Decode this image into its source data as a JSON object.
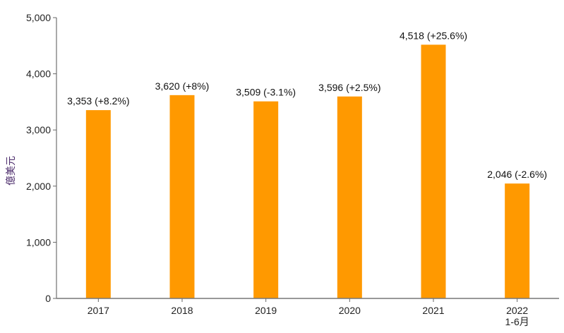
{
  "chart_data": {
    "type": "bar",
    "categories": [
      "2017",
      "2018",
      "2019",
      "2020",
      "2021",
      "2022\n1-6月"
    ],
    "values": [
      3353,
      3620,
      3509,
      3596,
      4518,
      2046
    ],
    "data_labels": [
      "3,353 (+8.2%)",
      "3,620 (+8%)",
      "3,509 (-3.1%)",
      "3,596 (+2.5%)",
      "4,518 (+25.6%)",
      "2,046 (-2.6%)"
    ],
    "title": "",
    "xlabel": "",
    "ylabel": "億美元",
    "ylim": [
      0,
      5000
    ],
    "yticks": [
      0,
      1000,
      2000,
      3000,
      4000,
      5000
    ],
    "ytick_labels": [
      "0",
      "1,000",
      "2,000",
      "3,000",
      "4,000",
      "5,000"
    ],
    "grid": false,
    "colors": {
      "bar": "#ff9900",
      "axis": "#aaaaaa",
      "ylabel": "#4a2a6a"
    }
  }
}
